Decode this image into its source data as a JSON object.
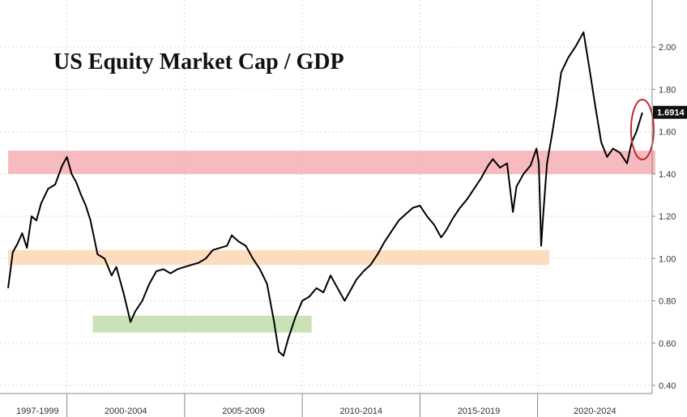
{
  "chart_data": {
    "type": "line",
    "title": "US Equity Market Cap / GDP",
    "xlabel": "",
    "ylabel": "",
    "x_range": [
      1997.5,
      2025.5
    ],
    "ylim": [
      0.4,
      2.1
    ],
    "y_ticks": [
      "0.40",
      "0.60",
      "0.80",
      "1.00",
      "1.20",
      "1.40",
      "1.60",
      "1.80",
      "2.00"
    ],
    "x_tick_labels": [
      "1997-1999",
      "2000-2004",
      "2005-2009",
      "2010-2014",
      "2015-2019",
      "2020-2024"
    ],
    "grid": true,
    "last_value_label": "1.6914",
    "series": [
      {
        "name": "",
        "color": "#000000",
        "x": [
          1997.5,
          1997.7,
          1997.9,
          1998.1,
          1998.3,
          1998.5,
          1998.7,
          1998.9,
          1999.2,
          1999.5,
          1999.8,
          2000.0,
          2000.2,
          2000.4,
          2000.6,
          2000.8,
          2001.0,
          2001.3,
          2001.6,
          2001.9,
          2002.1,
          2002.4,
          2002.7,
          2002.9,
          2003.2,
          2003.5,
          2003.8,
          2004.1,
          2004.4,
          2004.7,
          2005.0,
          2005.3,
          2005.6,
          2005.9,
          2006.2,
          2006.5,
          2006.8,
          2007.0,
          2007.3,
          2007.6,
          2007.9,
          2008.2,
          2008.5,
          2008.8,
          2009.0,
          2009.2,
          2009.4,
          2009.7,
          2010.0,
          2010.3,
          2010.6,
          2010.9,
          2011.2,
          2011.5,
          2011.8,
          2012.0,
          2012.3,
          2012.6,
          2012.9,
          2013.2,
          2013.5,
          2013.8,
          2014.1,
          2014.4,
          2014.7,
          2015.0,
          2015.3,
          2015.6,
          2015.9,
          2016.1,
          2016.4,
          2016.7,
          2017.0,
          2017.3,
          2017.6,
          2017.9,
          2018.1,
          2018.4,
          2018.7,
          2018.95,
          2019.1,
          2019.4,
          2019.7,
          2019.95,
          2020.05,
          2020.15,
          2020.22,
          2020.4,
          2020.6,
          2020.8,
          2021.0,
          2021.3,
          2021.6,
          2021.8,
          2021.95,
          2022.2,
          2022.45,
          2022.7,
          2022.95,
          2023.2,
          2023.5,
          2023.8,
          2024.0,
          2024.2,
          2024.45
        ],
        "values": [
          0.86,
          1.03,
          1.07,
          1.12,
          1.05,
          1.2,
          1.18,
          1.26,
          1.33,
          1.35,
          1.44,
          1.48,
          1.4,
          1.36,
          1.3,
          1.25,
          1.18,
          1.02,
          1.0,
          0.92,
          0.96,
          0.84,
          0.7,
          0.75,
          0.8,
          0.88,
          0.94,
          0.95,
          0.93,
          0.95,
          0.96,
          0.97,
          0.98,
          1.0,
          1.04,
          1.05,
          1.06,
          1.11,
          1.08,
          1.06,
          1.0,
          0.95,
          0.88,
          0.7,
          0.56,
          0.54,
          0.62,
          0.72,
          0.8,
          0.82,
          0.86,
          0.84,
          0.92,
          0.86,
          0.8,
          0.84,
          0.9,
          0.94,
          0.97,
          1.02,
          1.08,
          1.13,
          1.18,
          1.21,
          1.24,
          1.25,
          1.2,
          1.16,
          1.1,
          1.13,
          1.19,
          1.24,
          1.28,
          1.33,
          1.38,
          1.44,
          1.47,
          1.43,
          1.45,
          1.22,
          1.34,
          1.4,
          1.44,
          1.52,
          1.45,
          1.06,
          1.18,
          1.45,
          1.58,
          1.72,
          1.88,
          1.95,
          2.0,
          2.04,
          2.07,
          1.9,
          1.72,
          1.55,
          1.48,
          1.52,
          1.5,
          1.45,
          1.55,
          1.6,
          1.69
        ]
      }
    ],
    "bands": [
      {
        "ymin": 1.4,
        "ymax": 1.51,
        "x_from": 1997.5,
        "x_to": 2025.0,
        "color": "#f4a3a8"
      },
      {
        "ymin": 0.97,
        "ymax": 1.04,
        "x_from": 1997.5,
        "x_to": 2020.5,
        "color": "#fbd3a8"
      },
      {
        "ymin": 0.65,
        "ymax": 0.73,
        "x_from": 2001.1,
        "x_to": 2010.4,
        "color": "#b9d8a1"
      }
    ],
    "annotation": {
      "type": "ellipse",
      "color": "#c0282d",
      "x_center": 2024.45,
      "y_center": 1.61
    }
  }
}
